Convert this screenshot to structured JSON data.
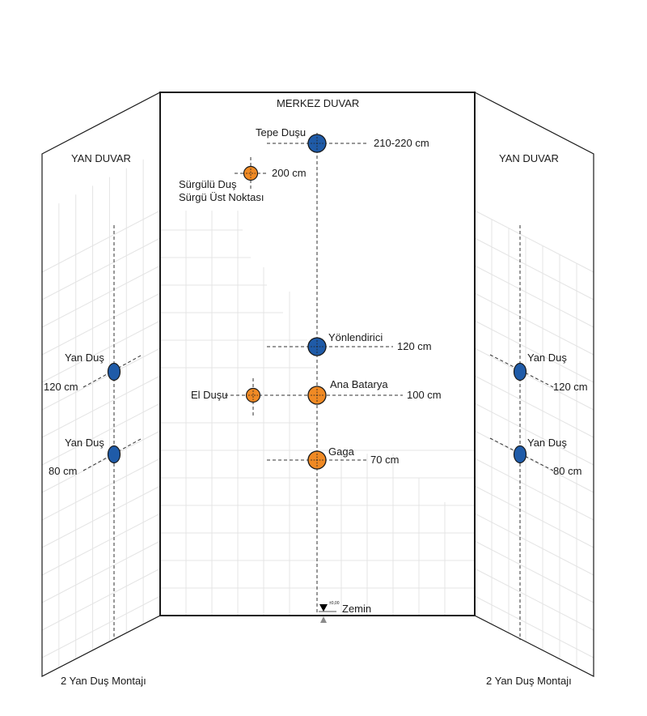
{
  "center_wall": {
    "title": "MERKEZ DUVAR",
    "fixtures": [
      {
        "name": "tepe-dusu",
        "label": "Tepe Duşu",
        "height": "210-220 cm",
        "color": "#1f5ba8"
      },
      {
        "name": "surgulu-dus",
        "label_line1": "Sürgülü Duş",
        "label_line2": "Sürgü Üst Noktası",
        "height": "200 cm",
        "color": "#f08a24"
      },
      {
        "name": "yonlendirici",
        "label": "Yönlendirici",
        "height": "120 cm",
        "color": "#1f5ba8"
      },
      {
        "name": "ana-batarya",
        "label": "Ana Batarya",
        "height": "100 cm",
        "color": "#f08a24"
      },
      {
        "name": "el-dusu",
        "label": "El Duşu",
        "color": "#f08a24"
      },
      {
        "name": "gaga",
        "label": "Gaga",
        "height": "70 cm",
        "color": "#f08a24"
      }
    ],
    "floor": {
      "label": "Zemin",
      "level": "±0,00"
    }
  },
  "left_wall": {
    "title": "YAN DUVAR",
    "fixtures": [
      {
        "label": "Yan Duş",
        "height": "120 cm",
        "color": "#1f5ba8"
      },
      {
        "label": "Yan Duş",
        "height": "80 cm",
        "color": "#1f5ba8"
      }
    ],
    "caption": "2 Yan Duş Montajı"
  },
  "right_wall": {
    "title": "YAN DUVAR",
    "fixtures": [
      {
        "label": "Yan Duş",
        "height": "120 cm",
        "color": "#1f5ba8"
      },
      {
        "label": "Yan Duş",
        "height": "80 cm",
        "color": "#1f5ba8"
      }
    ],
    "caption": "2 Yan Duş Montajı"
  },
  "colors": {
    "blue_fixture": "#1f5ba8",
    "orange_fixture": "#f08a24",
    "outline": "#1a1a1a",
    "grid": "#e4e4e4"
  }
}
